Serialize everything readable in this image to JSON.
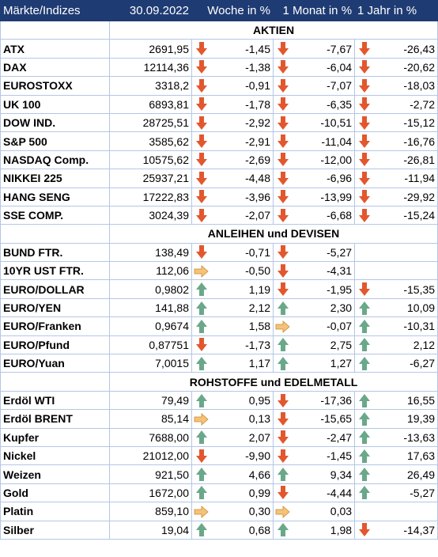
{
  "header": [
    "Märkte/Indizes",
    "30.09.2022",
    "Woche in %",
    "1 Monat in %",
    "1 Jahr in %"
  ],
  "sections": [
    {
      "title": "AKTIEN",
      "rows": [
        [
          "ATX",
          "2691,95",
          "-1,45",
          "-7,67",
          "-26,43"
        ],
        [
          "DAX",
          "12114,36",
          "-1,38",
          "-6,04",
          "-20,62"
        ],
        [
          "EUROSTOXX",
          "3318,2",
          "-0,91",
          "-7,07",
          "-18,03"
        ],
        [
          "UK 100",
          "6893,81",
          "-1,78",
          "-6,35",
          "-2,72"
        ],
        [
          "DOW IND.",
          "28725,51",
          "-2,92",
          "-10,51",
          "-15,12"
        ],
        [
          "S&P 500",
          "3585,62",
          "-2,91",
          "-11,04",
          "-16,76"
        ],
        [
          "NASDAQ Comp.",
          "10575,62",
          "-2,69",
          "-12,00",
          "-26,81"
        ],
        [
          "NIKKEI 225",
          "25937,21",
          "-4,48",
          "-6,96",
          "-11,94"
        ],
        [
          "HANG SENG",
          "17222,83",
          "-3,96",
          "-13,99",
          "-29,92"
        ],
        [
          "SSE COMP.",
          "3024,39",
          "-2,07",
          "-6,68",
          "-15,24"
        ]
      ]
    },
    {
      "title": "ANLEIHEN und DEVISEN",
      "rows": [
        [
          "BUND FTR.",
          "138,49",
          "-0,71",
          "-5,27",
          null
        ],
        [
          "10YR UST FTR.",
          "112,06",
          "-0,50",
          "-4,31",
          null
        ],
        [
          "EURO/DOLLAR",
          "0,9802",
          "1,19",
          "-1,95",
          "-15,35"
        ],
        [
          "EURO/YEN",
          "141,88",
          "2,12",
          "2,30",
          "10,09"
        ],
        [
          "EURO/Franken",
          "0,9674",
          "1,58",
          "-0,07",
          "-10,31"
        ],
        [
          "EURO/Pfund",
          "0,87751",
          "-1,73",
          "2,75",
          "2,12"
        ],
        [
          "EURO/Yuan",
          "7,0015",
          "1,17",
          "1,27",
          "-6,27"
        ]
      ]
    },
    {
      "title": "ROHSTOFFE und EDELMETALL",
      "rows": [
        [
          "Erdöl WTI",
          "79,49",
          "0,95",
          "-17,36",
          "16,55"
        ],
        [
          "Erdöl BRENT",
          "85,14",
          "0,13",
          "-15,65",
          "19,39"
        ],
        [
          "Kupfer",
          "7688,00",
          "2,07",
          "-2,47",
          "-13,63"
        ],
        [
          "Nickel",
          "21012,00",
          "-9,90",
          "-1,45",
          "17,63"
        ],
        [
          "Weizen",
          "921,50",
          "4,66",
          "9,34",
          "26,49"
        ],
        [
          "Gold",
          "1672,00",
          "0,99",
          "-4,44",
          "-5,27"
        ],
        [
          "Platin",
          "859,10",
          "0,30",
          "0,03",
          null
        ],
        [
          "Silber",
          "19,04",
          "0,68",
          "1,98",
          "-14,37"
        ]
      ]
    }
  ]
}
